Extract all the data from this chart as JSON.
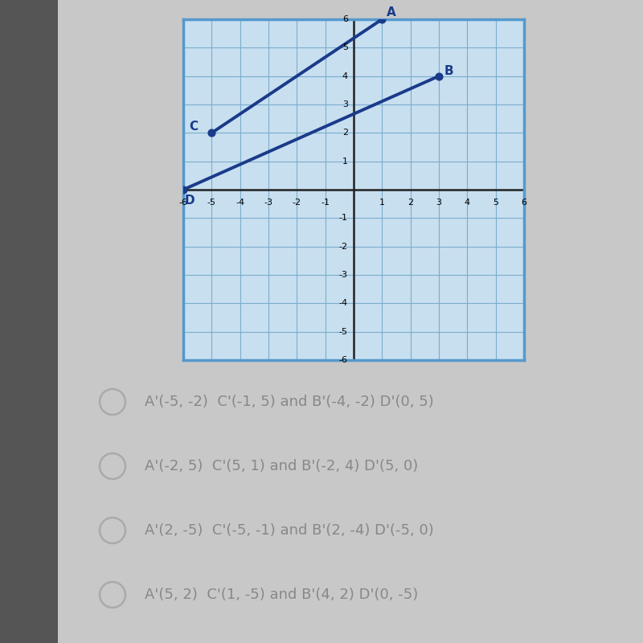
{
  "graph_bg": "#c8dff0",
  "graph_border": "#5599cc",
  "page_bg": "#c8c8c8",
  "left_strip_color": "#555555",
  "axis_range": [
    -6,
    6
  ],
  "grid_color": "#7aadcc",
  "axis_color": "#222222",
  "line_color": "#1a3a8a",
  "point_color": "#1a3a8a",
  "segment_AC": {
    "A": [
      1,
      6
    ],
    "C": [
      -5,
      2
    ]
  },
  "segment_BD": {
    "B": [
      3,
      4
    ],
    "D": [
      -6,
      0
    ]
  },
  "options": [
    "A'(-5, -2)  C'(-1, 5) and B'(-4, -2) D'(0, 5)",
    "A'(-2, 5)  C'(5, 1) and B'(-2, 4) D'(5, 0)",
    "A'(2, -5)  C'(-5, -1) and B'(2, -4) D'(-5, 0)",
    "A'(5, 2)  C'(1, -5) and B'(4, 2) D'(0, -5)"
  ],
  "option_color": "#888888",
  "circle_color": "#aaaaaa",
  "label_fontsize": 11,
  "option_fontsize": 13,
  "tick_fontsize": 8
}
